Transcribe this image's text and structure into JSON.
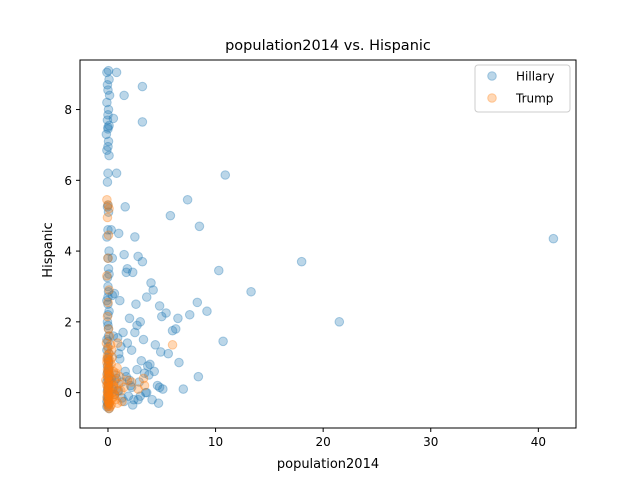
{
  "chart_data": {
    "type": "scatter",
    "title": "population2014 vs. Hispanic",
    "xlabel": "population2014",
    "ylabel": "Hispanic",
    "xlim": [
      -2.6,
      43.5
    ],
    "ylim": [
      -1.0,
      9.4
    ],
    "xticks": [
      0,
      10,
      20,
      30,
      40
    ],
    "yticks": [
      0,
      2,
      4,
      6,
      8
    ],
    "legend_placement": "top-right",
    "grid": false,
    "series": [
      {
        "name": "Hillary",
        "color": "#1f77b4",
        "opacity": 0.3,
        "x": [
          -0.1,
          0.05,
          0.1,
          -0.05,
          0.0,
          0.15,
          -0.1,
          0.05,
          0.0,
          -0.05,
          0.1,
          0.0,
          -0.15,
          0.05,
          0.0,
          -0.1,
          0.1,
          0.0,
          -0.05,
          0.0,
          0.05,
          -0.1,
          0.0,
          0.1,
          -0.05,
          0.0,
          0.05,
          -0.1,
          0.0,
          0.1,
          -0.05,
          0.0,
          0.05,
          0.0,
          -0.1,
          0.1,
          0.0,
          0.05,
          -0.05,
          0.0,
          0.1,
          0.0,
          -0.1,
          0.05,
          0.0,
          0.1,
          -0.05,
          0.0,
          0.05,
          0.0,
          -0.1,
          0.1,
          0.0,
          0.05,
          0.0,
          -0.05,
          0.1,
          0.0,
          0.05,
          -0.1,
          0.0,
          0.1,
          0.05,
          0.0,
          -0.05,
          0.0,
          0.1,
          0.05,
          0.0,
          -0.1,
          0.0,
          0.05,
          0.1,
          0.0,
          -0.05,
          0.0,
          0.8,
          1.5,
          3.2,
          3.2,
          0.5,
          0.8,
          1.6,
          5.8,
          7.4,
          8.5,
          2.5,
          1.0,
          0.3,
          0.4,
          1.5,
          2.8,
          1.8,
          2.3,
          3.2,
          1.7,
          4.0,
          10.9,
          10.3,
          13.3,
          18.0,
          21.5,
          41.4,
          9.2,
          6.5,
          5.4,
          4.8,
          5.0,
          7.6,
          6.3,
          10.7,
          8.3,
          4.2,
          3.6,
          2.0,
          2.7,
          1.1,
          0.6,
          0.4,
          2.6,
          3.0,
          1.4,
          0.9,
          0.5,
          1.0,
          1.8,
          2.5,
          3.3,
          4.4,
          4.9,
          5.6,
          6.0,
          3.9,
          3.1,
          2.2,
          1.6,
          1.2,
          0.7,
          0.3,
          3.8,
          2.9,
          4.3,
          4.6,
          5.1,
          6.6,
          7.0,
          3.5,
          2.1,
          1.3,
          0.8,
          0.4,
          1.9,
          2.4,
          3.0,
          3.6,
          4.1,
          4.7,
          8.4,
          4.8,
          2.7,
          1.5,
          0.9,
          1.3,
          0.6,
          2.0,
          2.3,
          3.4,
          0.5,
          1.1,
          1.7,
          2.8,
          3.7,
          2.2,
          1.0
        ],
        "y": [
          9.05,
          9.1,
          8.85,
          8.7,
          8.55,
          8.4,
          8.2,
          8.0,
          7.85,
          7.7,
          7.55,
          7.45,
          7.3,
          7.1,
          6.95,
          6.85,
          6.7,
          6.2,
          5.95,
          5.3,
          5.1,
          4.4,
          3.8,
          3.35,
          3.25,
          3.0,
          2.85,
          2.6,
          2.5,
          2.3,
          2.0,
          1.9,
          1.6,
          1.45,
          1.2,
          1.1,
          0.95,
          0.85,
          0.75,
          0.6,
          0.5,
          0.4,
          0.3,
          0.2,
          0.1,
          0.0,
          -0.1,
          -0.2,
          -0.3,
          -0.35,
          -0.4,
          -0.45,
          1.3,
          1.8,
          2.2,
          0.55,
          0.25,
          -0.15,
          0.65,
          -0.25,
          0.15,
          0.35,
          -0.05,
          0.45,
          0.05,
          -0.3,
          0.7,
          0.9,
          1.0,
          1.5,
          2.7,
          3.5,
          4.0,
          4.6,
          5.25,
          7.5,
          9.05,
          8.4,
          8.65,
          7.65,
          7.75,
          6.2,
          5.25,
          5.0,
          5.45,
          4.7,
          4.4,
          4.5,
          4.6,
          3.8,
          3.9,
          3.85,
          3.5,
          3.4,
          3.7,
          3.4,
          3.1,
          6.15,
          3.45,
          2.85,
          3.7,
          2.0,
          4.35,
          2.3,
          2.1,
          2.25,
          2.45,
          2.15,
          2.2,
          1.8,
          1.45,
          2.55,
          2.9,
          2.7,
          2.1,
          1.9,
          2.6,
          2.8,
          2.75,
          2.5,
          2.0,
          1.7,
          1.55,
          1.6,
          1.1,
          1.4,
          1.7,
          1.5,
          1.35,
          1.15,
          1.1,
          1.75,
          0.8,
          0.9,
          1.2,
          0.6,
          1.3,
          0.5,
          0.4,
          0.5,
          0.3,
          0.6,
          0.2,
          0.1,
          0.85,
          0.1,
          0.0,
          0.2,
          0.3,
          0.4,
          0.1,
          -0.1,
          -0.2,
          -0.1,
          0.0,
          -0.2,
          -0.3,
          0.45,
          0.15,
          0.65,
          -0.25,
          0.05,
          -0.15,
          -0.05,
          0.35,
          -0.35,
          0.55,
          0.25,
          0.95,
          0.45,
          -0.2,
          0.75,
          0.15,
          0.05
        ]
      },
      {
        "name": "Trump",
        "color": "#ff7f0e",
        "opacity": 0.3,
        "x": [
          -0.1,
          0.0,
          0.1,
          -0.05,
          0.05,
          0.0,
          -0.1,
          0.1,
          0.0,
          -0.05,
          0.05,
          0.15,
          -0.15,
          0.0,
          0.1,
          -0.1,
          0.05,
          0.0,
          -0.05,
          0.1,
          0.0,
          0.2,
          -0.2,
          0.05,
          0.0,
          -0.1,
          0.1,
          0.0,
          0.05,
          -0.05,
          0.0,
          0.1,
          -0.1,
          0.0,
          0.05,
          0.15,
          -0.05,
          0.0,
          0.1,
          -0.1,
          0.0,
          0.05,
          0.3,
          0.5,
          0.8,
          0.4,
          0.6,
          1.0,
          1.2,
          0.7,
          0.9,
          1.5,
          1.8,
          0.3,
          0.5,
          1.1,
          0.6,
          0.2,
          0.4,
          0.35,
          0.25,
          0.15,
          2.2,
          3.4,
          1.3,
          2.8,
          0.9,
          3.3,
          6.0,
          0.45,
          0.55,
          0.65,
          0.75,
          0.85,
          0.3,
          0.2,
          0.1,
          0.0,
          -0.05,
          0.05,
          0.0,
          0.1,
          0.0,
          0.05,
          -0.1,
          0.0,
          0.1
        ],
        "y": [
          5.45,
          5.3,
          5.2,
          4.95,
          4.45,
          3.8,
          3.3,
          2.9,
          2.55,
          2.15,
          1.8,
          1.6,
          1.4,
          1.25,
          1.1,
          0.95,
          0.85,
          0.75,
          0.65,
          0.55,
          0.45,
          0.4,
          0.35,
          0.3,
          0.25,
          0.2,
          0.15,
          0.1,
          0.05,
          0.0,
          -0.05,
          -0.1,
          -0.15,
          -0.2,
          -0.25,
          -0.3,
          -0.35,
          -0.4,
          -0.45,
          0.5,
          0.6,
          0.7,
          0.3,
          0.2,
          0.1,
          0.0,
          -0.1,
          0.25,
          0.05,
          -0.2,
          -0.3,
          0.15,
          0.35,
          0.8,
          0.6,
          0.45,
          -0.05,
          0.9,
          1.0,
          1.2,
          1.35,
          0.5,
          0.3,
          0.2,
          -0.25,
          0.1,
          1.4,
          0.4,
          1.35,
          -0.15,
          0.15,
          0.35,
          0.55,
          0.7,
          -0.35,
          -0.4,
          -0.3,
          0.95,
          1.05,
          0.65,
          0.45,
          -0.2,
          0.0,
          0.25,
          0.85,
          0.15,
          -0.1
        ]
      }
    ]
  }
}
